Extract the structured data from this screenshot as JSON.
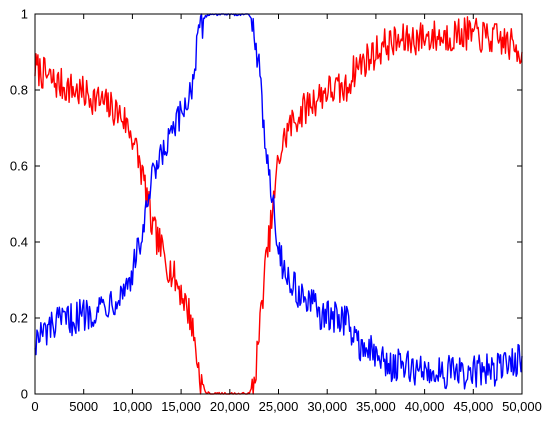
{
  "chart_data": {
    "type": "line",
    "title": "",
    "xlabel": "",
    "ylabel": "",
    "xlim": [
      0,
      50000
    ],
    "ylim": [
      0,
      1
    ],
    "grid": false,
    "x_ticks": [
      0,
      5000,
      10000,
      15000,
      20000,
      25000,
      30000,
      35000,
      40000,
      45000,
      50000
    ],
    "x_tick_labels": [
      "0",
      "5000",
      "10,000",
      "15,000",
      "20,000",
      "25,000",
      "30,000",
      "35,000",
      "40,000",
      "45,000",
      "50,000"
    ],
    "y_ticks": [
      0,
      0.2,
      0.4,
      0.6,
      0.8,
      1
    ],
    "y_tick_labels": [
      "0",
      "0.2",
      "0.4",
      "0.6",
      "0.8",
      "1"
    ],
    "series": [
      {
        "color": "#ff0000",
        "x": [
          0,
          2000,
          4000,
          6000,
          8000,
          9000,
          10000,
          11000,
          11500,
          12000,
          13000,
          14000,
          15000,
          16000,
          16500,
          17000,
          17500,
          18000,
          20000,
          22000,
          22500,
          23000,
          23500,
          24000,
          24500,
          25000,
          26000,
          28000,
          30000,
          32000,
          32500,
          33000,
          34000,
          36000,
          38000,
          40000,
          42000,
          44000,
          46000,
          48000,
          50000
        ],
        "y": [
          0.86,
          0.82,
          0.8,
          0.78,
          0.75,
          0.73,
          0.68,
          0.58,
          0.52,
          0.44,
          0.38,
          0.32,
          0.27,
          0.2,
          0.12,
          0.03,
          0.005,
          0.0,
          0.0,
          0.0,
          0.03,
          0.15,
          0.3,
          0.4,
          0.5,
          0.62,
          0.7,
          0.76,
          0.8,
          0.8,
          0.84,
          0.86,
          0.88,
          0.92,
          0.93,
          0.94,
          0.94,
          0.95,
          0.94,
          0.93,
          0.9
        ]
      },
      {
        "color": "#0000ff",
        "x": [
          0,
          2000,
          4000,
          6000,
          8000,
          9000,
          10000,
          11000,
          11500,
          12000,
          13000,
          14000,
          15000,
          16000,
          16500,
          17000,
          17500,
          18000,
          20000,
          22000,
          22500,
          23000,
          23500,
          24000,
          24500,
          25000,
          26000,
          28000,
          30000,
          32000,
          32500,
          33000,
          34000,
          36000,
          38000,
          40000,
          42000,
          44000,
          46000,
          48000,
          50000
        ],
        "y": [
          0.14,
          0.18,
          0.2,
          0.22,
          0.25,
          0.27,
          0.32,
          0.42,
          0.48,
          0.56,
          0.62,
          0.68,
          0.73,
          0.8,
          0.88,
          0.97,
          0.995,
          1.0,
          1.0,
          1.0,
          0.97,
          0.85,
          0.7,
          0.6,
          0.5,
          0.38,
          0.3,
          0.24,
          0.2,
          0.2,
          0.16,
          0.14,
          0.12,
          0.08,
          0.07,
          0.06,
          0.06,
          0.05,
          0.06,
          0.07,
          0.1
        ]
      }
    ]
  }
}
